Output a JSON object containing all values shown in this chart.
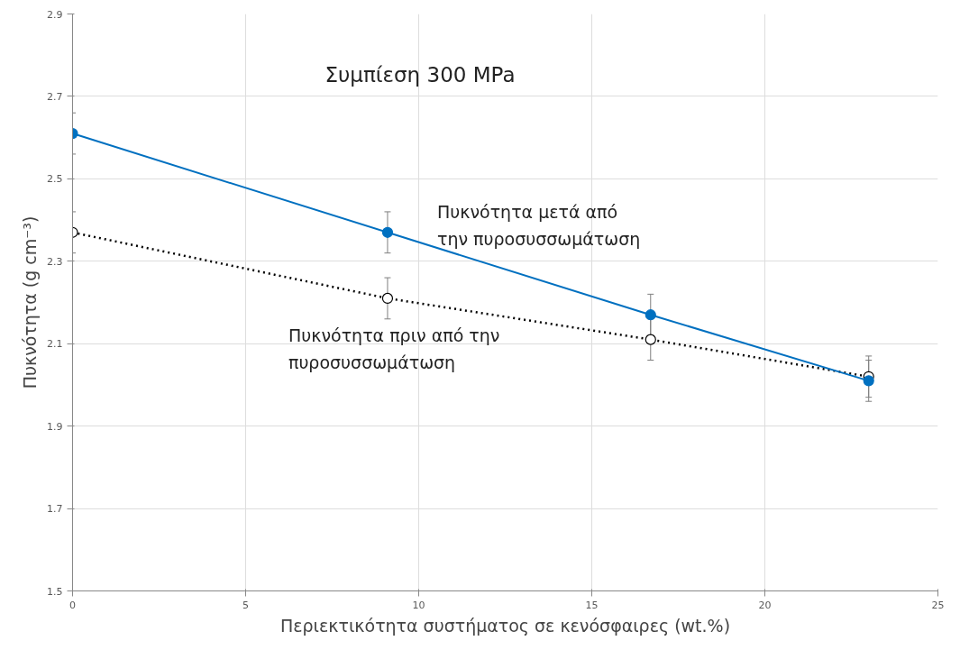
{
  "chart_data": {
    "type": "line",
    "title": "Συμπίεση 300 MPa",
    "xlabel": "Περιεκτικότητα συστήματος σε κενόσφαιρες (wt.%)",
    "ylabel": "Πυκνότητα (g cm⁻³)",
    "x": [
      0,
      9.1,
      16.7,
      23.0
    ],
    "series": [
      {
        "name": "Πυκνότητα μετά από την πυροσυσσωμάτωση",
        "color": "#0070c0",
        "values": [
          2.61,
          2.37,
          2.17,
          2.01
        ],
        "errors": [
          0.05,
          0.05,
          0.05,
          0.05
        ],
        "line_style": "solid",
        "marker": "circle"
      },
      {
        "name": "Πυκνότητα πριν από την πυροσυσσωμάτωση",
        "color": "#000000",
        "values": [
          2.37,
          2.21,
          2.11,
          2.02
        ],
        "errors": [
          0.05,
          0.05,
          0.05,
          0.05
        ],
        "line_style": "dotted",
        "marker": "circle"
      }
    ],
    "xlim": [
      0,
      25
    ],
    "xticks": [
      0,
      5,
      10,
      15,
      20,
      25
    ],
    "ylim": [
      1.5,
      2.9
    ],
    "yticks": [
      1.5,
      1.7,
      1.9,
      2.1,
      2.3,
      2.5,
      2.7,
      2.9
    ],
    "grid": true
  }
}
